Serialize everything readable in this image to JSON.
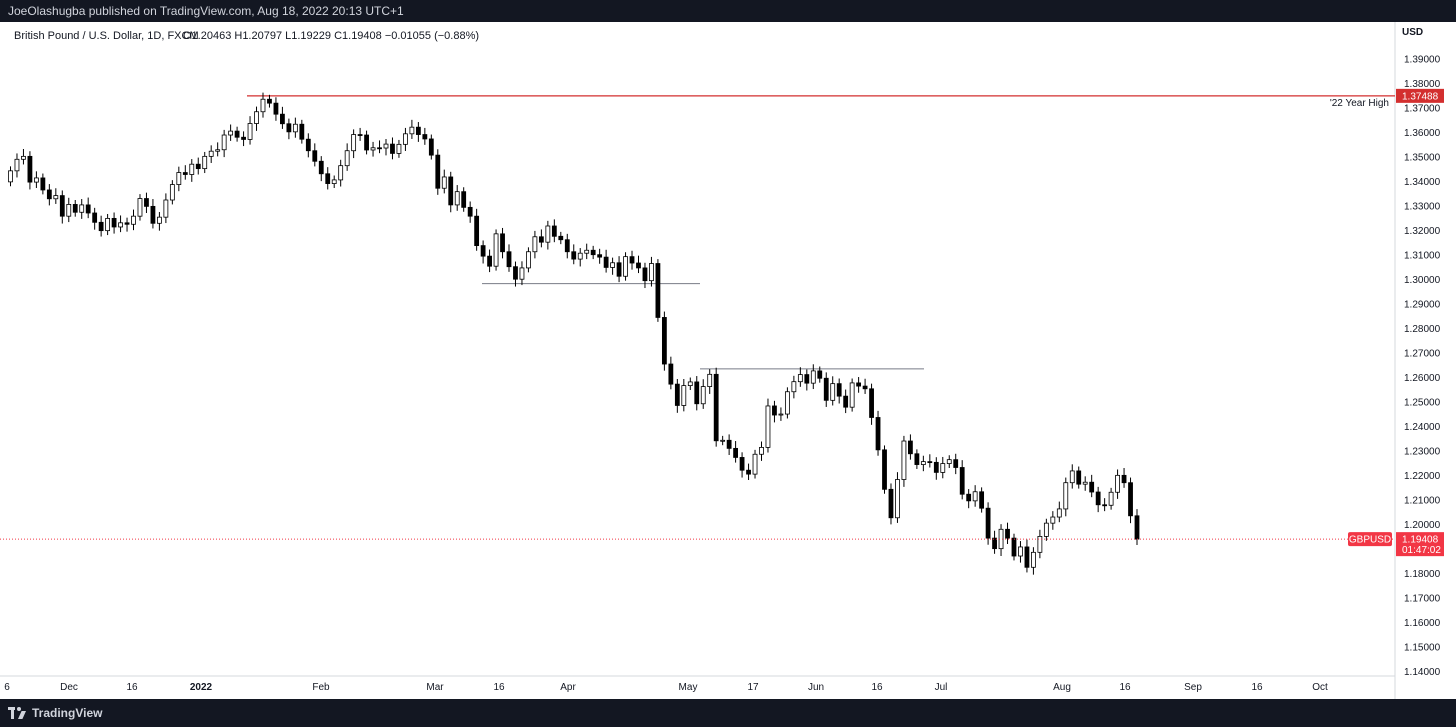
{
  "header": {
    "published": "JoeOlashugba published on TradingView.com, Aug 18, 2022 20:13 UTC+1"
  },
  "footer": {
    "brand": "TradingView"
  },
  "chart_data": {
    "type": "candlestick",
    "title": "British Pound / U.S. Dollar, 1D, FXCM",
    "ohlc_legend": "O1.20463  H1.20797  L1.19229  C1.19408  −0.01055 (−0.88%)",
    "currency_label": "USD",
    "ylim": [
      1.135,
      1.405
    ],
    "y_ticks": [
      "1.39000",
      "1.38000",
      "1.37000",
      "1.36000",
      "1.35000",
      "1.34000",
      "1.33000",
      "1.32000",
      "1.31000",
      "1.30000",
      "1.29000",
      "1.28000",
      "1.27000",
      "1.26000",
      "1.25000",
      "1.24000",
      "1.23000",
      "1.22000",
      "1.21000",
      "1.20000",
      "1.18000",
      "1.17000",
      "1.16000",
      "1.15000",
      "1.14000"
    ],
    "x_ticks": [
      "6",
      "Dec",
      "16",
      "2022",
      "Feb",
      "Mar",
      "16",
      "Apr",
      "May",
      "17",
      "Jun",
      "16",
      "Jul",
      "Aug",
      "16",
      "Sep",
      "16",
      "Oct"
    ],
    "bold_x_ticks": [
      "2022"
    ],
    "closes": [
      1.3443,
      1.349,
      1.3502,
      1.3397,
      1.3414,
      1.3365,
      1.3329,
      1.3342,
      1.3258,
      1.3306,
      1.3274,
      1.3304,
      1.3271,
      1.3233,
      1.3199,
      1.3249,
      1.3214,
      1.3231,
      1.3225,
      1.3258,
      1.333,
      1.3298,
      1.3229,
      1.3254,
      1.3324,
      1.3387,
      1.3436,
      1.3428,
      1.347,
      1.3452,
      1.3502,
      1.3523,
      1.3529,
      1.3589,
      1.3605,
      1.358,
      1.3571,
      1.3636,
      1.3684,
      1.3735,
      1.3719,
      1.3674,
      1.3635,
      1.3602,
      1.3633,
      1.3572,
      1.3525,
      1.3482,
      1.3431,
      1.3391,
      1.3406,
      1.3464,
      1.3525,
      1.3591,
      1.3589,
      1.3528,
      1.3537,
      1.3536,
      1.3552,
      1.3514,
      1.3551,
      1.3594,
      1.3621,
      1.3591,
      1.3573,
      1.3507,
      1.3372,
      1.3418,
      1.3304,
      1.3358,
      1.3294,
      1.3258,
      1.3138,
      1.3095,
      1.3054,
      1.3186,
      1.3113,
      1.3052,
      1.3001,
      1.3047,
      1.3113,
      1.3174,
      1.3152,
      1.3218,
      1.3176,
      1.3162,
      1.3113,
      1.3083,
      1.3107,
      1.3119,
      1.3101,
      1.3091,
      1.3049,
      1.3068,
      1.3013,
      1.3093,
      1.3067,
      1.3047,
      1.2995,
      1.3065,
      1.2845,
      1.2655,
      1.2573,
      1.2486,
      1.2567,
      1.2582,
      1.2493,
      1.2563,
      1.2613,
      1.2342,
      1.2344,
      1.2311,
      1.2274,
      1.2222,
      1.2206,
      1.2287,
      1.2315,
      1.2484,
      1.2447,
      1.2451,
      1.2542,
      1.2583,
      1.2612,
      1.2577,
      1.2627,
      1.2597,
      1.2507,
      1.2575,
      1.2524,
      1.2479,
      1.2578,
      1.2565,
      1.2554,
      1.2437,
      1.2305,
      1.2144,
      1.2028,
      1.2184,
      1.2341,
      1.2289,
      1.2245,
      1.2257,
      1.2254,
      1.2213,
      1.2249,
      1.2265,
      1.2233,
      1.2124,
      1.2097,
      1.2134,
      1.2067,
      1.1945,
      1.1902,
      1.1981,
      1.1945,
      1.1872,
      1.1909,
      1.1826,
      1.1887,
      1.1952,
      1.2006,
      1.2031,
      1.2064,
      1.2171,
      1.2219,
      1.2165,
      1.2173,
      1.2133,
      1.2081,
      1.2079,
      1.2132,
      1.2201,
      1.2171,
      1.2036,
      1.1941
    ],
    "support_resistance": [
      {
        "label": "'22 Year High",
        "value": 1.37488,
        "value_label": "1.37488"
      },
      {
        "value": 1.2983
      },
      {
        "value": 1.2635
      }
    ],
    "current_price": {
      "symbol": "GBPUSD",
      "value": 1.19408,
      "value_label": "1.19408",
      "countdown": "01:47:02"
    },
    "colors": {
      "up": "#ffffff",
      "down": "#000000",
      "wick": "#000000",
      "year_high_line": "#d32f2f",
      "level_line": "#787b86",
      "price_line": "#f23645"
    }
  }
}
